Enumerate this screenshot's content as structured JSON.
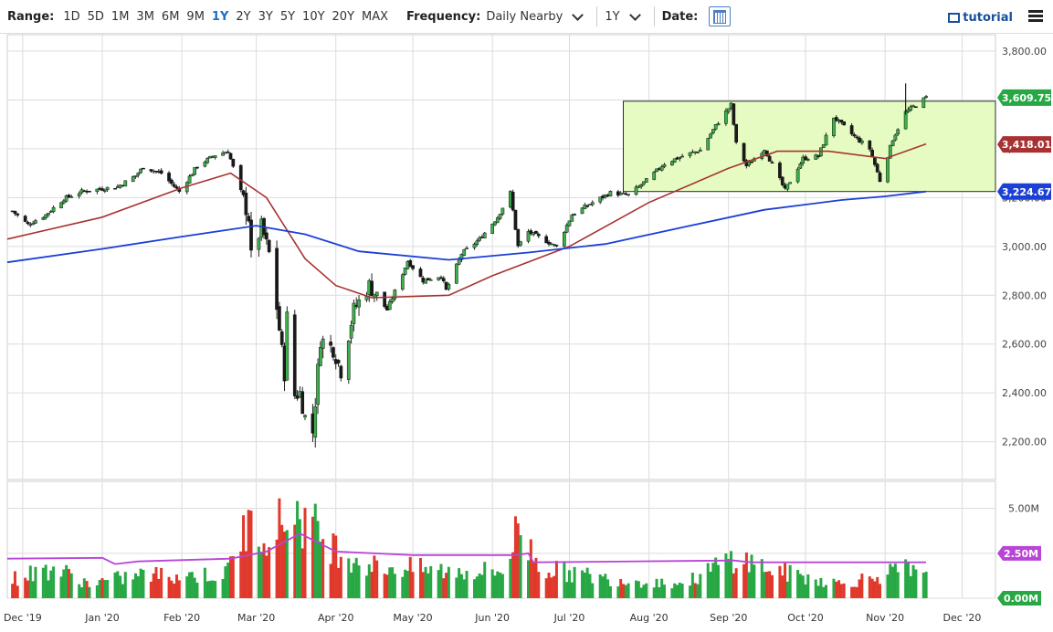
{
  "toolbar": {
    "range_label": "Range:",
    "ranges": [
      "1D",
      "5D",
      "1M",
      "3M",
      "6M",
      "9M",
      "1Y",
      "2Y",
      "3Y",
      "5Y",
      "10Y",
      "20Y",
      "MAX"
    ],
    "active_range": "1Y",
    "frequency_label": "Frequency:",
    "frequency_value": "Daily Nearby",
    "period_value": "1Y",
    "date_label": "Date:",
    "tutorial_label": "tutorial"
  },
  "colors": {
    "up": "#27a844",
    "down": "#e0392b",
    "ma_short": "#a83232",
    "ma_long": "#1c3fd6",
    "volume_ma": "#b845d6",
    "box_fill": "#e6fbc2",
    "grid": "#dcdcdc"
  },
  "chart_data": {
    "type": "candlestick",
    "price_axis": {
      "ticks": [
        "3,800.00",
        "3,600.00",
        "3,400.00",
        "3,200.00",
        "3,000.00",
        "2,800.00",
        "2,600.00",
        "2,400.00",
        "2,200.00"
      ],
      "ylim": [
        2150,
        3830
      ]
    },
    "x_ticks": [
      "Dec '19",
      "Jan '20",
      "Feb '20",
      "Mar '20",
      "Apr '20",
      "May '20",
      "Jun '20",
      "Jul '20",
      "Aug '20",
      "Sep '20",
      "Oct '20",
      "Nov '20",
      "Dec '20"
    ],
    "x_range": [
      "2019-11-25",
      "2020-12-14"
    ],
    "value_labels": [
      {
        "text": "3,609.75",
        "value": 3609.75,
        "color": "#27a844"
      },
      {
        "text": "3,418.01",
        "value": 3418.01,
        "color": "#a83232"
      },
      {
        "text": "3,224.67",
        "value": 3224.67,
        "color": "#1c3fd6"
      }
    ],
    "range_box": {
      "from": "2020-07-22",
      "to_right_edge": true,
      "top": 3595,
      "bottom": 3225
    },
    "price_path": [
      [
        "2019-11-27",
        3145
      ],
      [
        "2019-12-03",
        3090
      ],
      [
        "2019-12-10",
        3130
      ],
      [
        "2019-12-17",
        3195
      ],
      [
        "2019-12-24",
        3225
      ],
      [
        "2019-12-31",
        3235
      ],
      [
        "2020-01-07",
        3245
      ],
      [
        "2020-01-14",
        3290
      ],
      [
        "2020-01-17",
        3325
      ],
      [
        "2020-01-24",
        3300
      ],
      [
        "2020-01-31",
        3225
      ],
      [
        "2020-02-07",
        3330
      ],
      [
        "2020-02-14",
        3375
      ],
      [
        "2020-02-19",
        3390
      ],
      [
        "2020-02-24",
        3225
      ],
      [
        "2020-02-27",
        3120
      ],
      [
        "2020-02-28",
        2955
      ],
      [
        "2020-03-03",
        3080
      ],
      [
        "2020-03-06",
        2970
      ],
      [
        "2020-03-09",
        2750
      ],
      [
        "2020-03-12",
        2480
      ],
      [
        "2020-03-13",
        2710
      ],
      [
        "2020-03-16",
        2390
      ],
      [
        "2020-03-18",
        2400
      ],
      [
        "2020-03-20",
        2300
      ],
      [
        "2020-03-23",
        2240
      ],
      [
        "2020-03-26",
        2620
      ],
      [
        "2020-03-31",
        2580
      ],
      [
        "2020-04-03",
        2490
      ],
      [
        "2020-04-08",
        2740
      ],
      [
        "2020-04-14",
        2840
      ],
      [
        "2020-04-21",
        2740
      ],
      [
        "2020-04-29",
        2940
      ],
      [
        "2020-05-05",
        2860
      ],
      [
        "2020-05-12",
        2880
      ],
      [
        "2020-05-14",
        2820
      ],
      [
        "2020-05-20",
        2970
      ],
      [
        "2020-05-27",
        3030
      ],
      [
        "2020-06-03",
        3120
      ],
      [
        "2020-06-08",
        3220
      ],
      [
        "2020-06-11",
        3000
      ],
      [
        "2020-06-15",
        3060
      ],
      [
        "2020-06-26",
        3000
      ],
      [
        "2020-07-02",
        3130
      ],
      [
        "2020-07-10",
        3180
      ],
      [
        "2020-07-17",
        3220
      ],
      [
        "2020-07-24",
        3210
      ],
      [
        "2020-07-31",
        3270
      ],
      [
        "2020-08-07",
        3340
      ],
      [
        "2020-08-14",
        3370
      ],
      [
        "2020-08-21",
        3395
      ],
      [
        "2020-08-28",
        3510
      ],
      [
        "2020-09-02",
        3580
      ],
      [
        "2020-09-04",
        3420
      ],
      [
        "2020-09-08",
        3330
      ],
      [
        "2020-09-15",
        3400
      ],
      [
        "2020-09-23",
        3230
      ],
      [
        "2020-09-30",
        3360
      ],
      [
        "2020-10-06",
        3370
      ],
      [
        "2020-10-12",
        3530
      ],
      [
        "2020-10-20",
        3450
      ],
      [
        "2020-10-26",
        3400
      ],
      [
        "2020-10-30",
        3270
      ],
      [
        "2020-11-04",
        3440
      ],
      [
        "2020-11-09",
        3550
      ],
      [
        "2020-11-13",
        3580
      ],
      [
        "2020-11-17",
        3610
      ]
    ],
    "ma_short_path": [
      [
        "2019-11-25",
        3030
      ],
      [
        "2020-01-01",
        3120
      ],
      [
        "2020-02-01",
        3240
      ],
      [
        "2020-02-20",
        3300
      ],
      [
        "2020-03-05",
        3200
      ],
      [
        "2020-03-20",
        2950
      ],
      [
        "2020-04-01",
        2840
      ],
      [
        "2020-04-15",
        2790
      ],
      [
        "2020-05-15",
        2800
      ],
      [
        "2020-06-01",
        2880
      ],
      [
        "2020-07-01",
        3000
      ],
      [
        "2020-08-01",
        3180
      ],
      [
        "2020-09-01",
        3320
      ],
      [
        "2020-09-20",
        3390
      ],
      [
        "2020-10-10",
        3390
      ],
      [
        "2020-11-01",
        3360
      ],
      [
        "2020-11-17",
        3420
      ]
    ],
    "ma_long_path": [
      [
        "2019-11-25",
        2935
      ],
      [
        "2020-01-01",
        2990
      ],
      [
        "2020-02-01",
        3040
      ],
      [
        "2020-03-01",
        3085
      ],
      [
        "2020-03-20",
        3050
      ],
      [
        "2020-04-10",
        2980
      ],
      [
        "2020-05-15",
        2945
      ],
      [
        "2020-06-15",
        2975
      ],
      [
        "2020-07-15",
        3010
      ],
      [
        "2020-08-15",
        3080
      ],
      [
        "2020-09-15",
        3150
      ],
      [
        "2020-10-15",
        3190
      ],
      [
        "2020-11-01",
        3205
      ],
      [
        "2020-11-17",
        3225
      ]
    ],
    "volume_axis": {
      "ticks": [
        "5.00M",
        "2.50M",
        "0.00M"
      ],
      "ylim": [
        0,
        6.0
      ]
    },
    "volume_ma_path": [
      [
        "2019-11-25",
        2.2
      ],
      [
        "2020-01-01",
        2.25
      ],
      [
        "2020-01-06",
        1.9
      ],
      [
        "2020-01-15",
        2.05
      ],
      [
        "2020-02-20",
        2.2
      ],
      [
        "2020-03-05",
        2.6
      ],
      [
        "2020-03-18",
        3.6
      ],
      [
        "2020-04-01",
        2.6
      ],
      [
        "2020-05-01",
        2.4
      ],
      [
        "2020-06-10",
        2.4
      ],
      [
        "2020-06-15",
        2.5
      ],
      [
        "2020-06-17",
        2.0
      ],
      [
        "2020-09-03",
        2.1
      ],
      [
        "2020-09-10",
        2.0
      ],
      [
        "2020-11-17",
        2.0
      ]
    ],
    "volume_profile": [
      [
        "2019-11-25",
        1.0
      ],
      [
        "2019-12-13",
        1.7
      ],
      [
        "2019-12-27",
        0.8
      ],
      [
        "2020-01-15",
        1.3
      ],
      [
        "2020-02-18",
        1.3
      ],
      [
        "2020-02-25",
        3.8
      ],
      [
        "2020-03-09",
        4.0
      ],
      [
        "2020-03-16",
        4.9
      ],
      [
        "2020-04-01",
        2.8
      ],
      [
        "2020-04-15",
        1.8
      ],
      [
        "2020-05-15",
        1.5
      ],
      [
        "2020-06-05",
        1.5
      ],
      [
        "2020-06-11",
        3.9
      ],
      [
        "2020-06-20",
        1.7
      ],
      [
        "2020-07-15",
        1.1
      ],
      [
        "2020-08-15",
        0.8
      ],
      [
        "2020-09-03",
        2.3
      ],
      [
        "2020-09-20",
        1.5
      ],
      [
        "2020-10-15",
        0.8
      ],
      [
        "2020-11-09",
        1.6
      ],
      [
        "2020-11-17",
        1.1
      ]
    ]
  }
}
